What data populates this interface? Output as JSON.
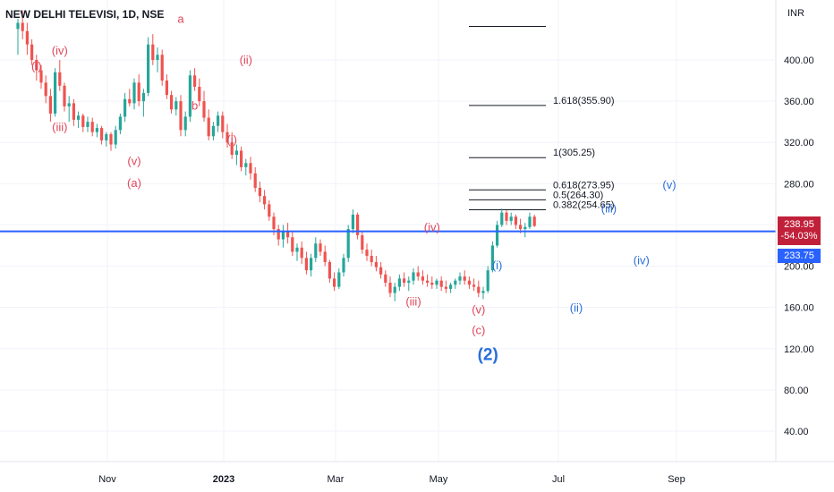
{
  "header": {
    "symbol": "NEW DELHI TELEVISI, 1D, NSE",
    "currency": "INR"
  },
  "price_tags": {
    "last": "238.95",
    "change": "-54.03%",
    "hline": "233.75"
  },
  "chart_data": {
    "type": "candlestick",
    "y_axis_ticks": [
      "400.00",
      "360.00",
      "320.00",
      "280.00",
      "240.00",
      "200.00",
      "160.00",
      "120.00",
      "80.00",
      "40.00"
    ],
    "x_axis_ticks": [
      {
        "label": "Nov",
        "bold": false
      },
      {
        "label": "2023",
        "bold": true
      },
      {
        "label": "Mar",
        "bold": false
      },
      {
        "label": "May",
        "bold": false
      },
      {
        "label": "Jul",
        "bold": false
      },
      {
        "label": "Sep",
        "bold": false
      }
    ],
    "ylim": [
      30,
      435
    ],
    "horizontal_line": 233.75,
    "last_price": 238.95,
    "last_change_pct": -54.03,
    "fib_levels": [
      {
        "label": "1.618(355.90)",
        "value": 355.9
      },
      {
        "label": "1(305.25)",
        "value": 305.25
      },
      {
        "label": "0.618(273.95)",
        "value": 273.95
      },
      {
        "label": "0.5(264.30)",
        "value": 264.3
      },
      {
        "label": "0.382(254.65)",
        "value": 254.65
      },
      {
        "label": "",
        "value": 432.5
      }
    ],
    "wave_labels": [
      {
        "text": "(i)",
        "x": 4,
        "y": 390,
        "color": "red",
        "size": "normal"
      },
      {
        "text": "(iv)",
        "x": 9,
        "y": 405,
        "color": "red",
        "size": "normal"
      },
      {
        "text": "(iii)",
        "x": 9,
        "y": 331,
        "color": "red",
        "size": "normal"
      },
      {
        "text": "(v)",
        "x": 25,
        "y": 298,
        "color": "red",
        "size": "normal"
      },
      {
        "text": "(a)",
        "x": 25,
        "y": 277,
        "color": "red",
        "size": "normal"
      },
      {
        "text": "a",
        "x": 35,
        "y": 436,
        "color": "red",
        "size": "normal"
      },
      {
        "text": "b",
        "x": 38,
        "y": 352,
        "color": "red",
        "size": "normal"
      },
      {
        "text": "(ii)",
        "x": 49,
        "y": 396,
        "color": "red",
        "size": "normal"
      },
      {
        "text": "(i)",
        "x": 46,
        "y": 319,
        "color": "red",
        "size": "normal"
      },
      {
        "text": "(iv)",
        "x": 89,
        "y": 234,
        "color": "red",
        "size": "normal"
      },
      {
        "text": "(iii)",
        "x": 85,
        "y": 162,
        "color": "red",
        "size": "normal"
      },
      {
        "text": "(v)",
        "x": 99,
        "y": 154,
        "color": "red",
        "size": "normal"
      },
      {
        "text": "(c)",
        "x": 99,
        "y": 134,
        "color": "red",
        "size": "normal"
      },
      {
        "text": "(2)",
        "x": 101,
        "y": 109,
        "color": "blue",
        "size": "big"
      },
      {
        "text": "(i)",
        "x": 103,
        "y": 197,
        "color": "blue",
        "size": "normal"
      },
      {
        "text": "(ii)",
        "x": 120,
        "y": 156,
        "color": "blue",
        "size": "normal"
      },
      {
        "text": "(iii)",
        "x": 127,
        "y": 252,
        "color": "blue",
        "size": "normal"
      },
      {
        "text": "(iv)",
        "x": 134,
        "y": 202,
        "color": "blue",
        "size": "normal"
      },
      {
        "text": "(v)",
        "x": 140,
        "y": 275,
        "color": "blue",
        "size": "normal"
      }
    ],
    "candles": [
      [
        0,
        430,
        440,
        405,
        436
      ],
      [
        1,
        436,
        448,
        420,
        428
      ],
      [
        2,
        428,
        436,
        405,
        415
      ],
      [
        3,
        415,
        420,
        395,
        400
      ],
      [
        4,
        400,
        405,
        380,
        390
      ],
      [
        5,
        390,
        395,
        372,
        378
      ],
      [
        6,
        378,
        385,
        358,
        365
      ],
      [
        7,
        365,
        372,
        340,
        348
      ],
      [
        8,
        348,
        392,
        345,
        388
      ],
      [
        9,
        388,
        400,
        370,
        375
      ],
      [
        10,
        375,
        378,
        350,
        355
      ],
      [
        11,
        355,
        365,
        340,
        358
      ],
      [
        12,
        358,
        362,
        336,
        342
      ],
      [
        13,
        342,
        350,
        334,
        346
      ],
      [
        14,
        346,
        348,
        330,
        335
      ],
      [
        15,
        335,
        345,
        330,
        340
      ],
      [
        16,
        340,
        344,
        326,
        330
      ],
      [
        17,
        330,
        338,
        325,
        334
      ],
      [
        18,
        334,
        336,
        318,
        322
      ],
      [
        19,
        322,
        330,
        316,
        328
      ],
      [
        20,
        328,
        330,
        312,
        318
      ],
      [
        21,
        318,
        336,
        314,
        332
      ],
      [
        22,
        332,
        348,
        328,
        345
      ],
      [
        23,
        345,
        368,
        340,
        362
      ],
      [
        24,
        362,
        372,
        355,
        358
      ],
      [
        25,
        358,
        382,
        352,
        378
      ],
      [
        26,
        378,
        386,
        355,
        360
      ],
      [
        27,
        360,
        372,
        345,
        368
      ],
      [
        28,
        368,
        422,
        365,
        415
      ],
      [
        29,
        415,
        425,
        395,
        400
      ],
      [
        30,
        400,
        412,
        388,
        405
      ],
      [
        31,
        405,
        410,
        375,
        380
      ],
      [
        32,
        380,
        386,
        362,
        366
      ],
      [
        33,
        366,
        370,
        348,
        352
      ],
      [
        34,
        352,
        364,
        346,
        360
      ],
      [
        35,
        360,
        366,
        326,
        332
      ],
      [
        36,
        332,
        350,
        326,
        345
      ],
      [
        37,
        345,
        390,
        340,
        385
      ],
      [
        38,
        385,
        392,
        370,
        374
      ],
      [
        39,
        374,
        382,
        355,
        360
      ],
      [
        40,
        360,
        370,
        340,
        344
      ],
      [
        41,
        344,
        352,
        322,
        326
      ],
      [
        42,
        326,
        340,
        322,
        336
      ],
      [
        43,
        336,
        350,
        330,
        346
      ],
      [
        44,
        346,
        350,
        324,
        330
      ],
      [
        45,
        330,
        338,
        315,
        320
      ],
      [
        46,
        320,
        330,
        304,
        308
      ],
      [
        47,
        308,
        318,
        298,
        312
      ],
      [
        48,
        312,
        316,
        292,
        296
      ],
      [
        49,
        296,
        304,
        288,
        300
      ],
      [
        50,
        300,
        306,
        284,
        290
      ],
      [
        51,
        290,
        296,
        272,
        276
      ],
      [
        52,
        276,
        282,
        262,
        268
      ],
      [
        53,
        268,
        274,
        255,
        260
      ],
      [
        54,
        260,
        264,
        244,
        248
      ],
      [
        55,
        248,
        252,
        230,
        236
      ],
      [
        56,
        236,
        240,
        220,
        226
      ],
      [
        57,
        226,
        240,
        218,
        234
      ],
      [
        58,
        234,
        242,
        222,
        228
      ],
      [
        59,
        228,
        234,
        210,
        214
      ],
      [
        60,
        214,
        222,
        205,
        218
      ],
      [
        61,
        218,
        224,
        202,
        208
      ],
      [
        62,
        208,
        214,
        192,
        196
      ],
      [
        63,
        196,
        212,
        190,
        208
      ],
      [
        64,
        208,
        228,
        204,
        222
      ],
      [
        65,
        222,
        226,
        210,
        214
      ],
      [
        66,
        214,
        220,
        200,
        204
      ],
      [
        67,
        204,
        206,
        184,
        188
      ],
      [
        68,
        188,
        194,
        176,
        180
      ],
      [
        69,
        180,
        198,
        178,
        194
      ],
      [
        70,
        194,
        212,
        190,
        208
      ],
      [
        71,
        208,
        240,
        204,
        236
      ],
      [
        72,
        236,
        255,
        232,
        250
      ],
      [
        73,
        250,
        252,
        226,
        230
      ],
      [
        74,
        230,
        234,
        212,
        216
      ],
      [
        75,
        216,
        222,
        205,
        210
      ],
      [
        76,
        210,
        216,
        200,
        204
      ],
      [
        77,
        204,
        210,
        195,
        199
      ],
      [
        78,
        199,
        204,
        188,
        192
      ],
      [
        79,
        192,
        196,
        180,
        184
      ],
      [
        80,
        184,
        190,
        170,
        174
      ],
      [
        81,
        174,
        184,
        166,
        180
      ],
      [
        82,
        180,
        192,
        176,
        188
      ],
      [
        83,
        188,
        194,
        180,
        184
      ],
      [
        84,
        184,
        190,
        176,
        186
      ],
      [
        85,
        186,
        198,
        182,
        194
      ],
      [
        86,
        194,
        200,
        186,
        190
      ],
      [
        87,
        190,
        196,
        182,
        186
      ],
      [
        88,
        186,
        192,
        180,
        184
      ],
      [
        89,
        184,
        190,
        178,
        182
      ],
      [
        90,
        182,
        188,
        178,
        186
      ],
      [
        91,
        186,
        190,
        176,
        180
      ],
      [
        92,
        180,
        186,
        174,
        178
      ],
      [
        93,
        178,
        184,
        174,
        182
      ],
      [
        94,
        182,
        188,
        178,
        186
      ],
      [
        95,
        186,
        194,
        182,
        190
      ],
      [
        96,
        190,
        196,
        182,
        186
      ],
      [
        97,
        186,
        190,
        178,
        182
      ],
      [
        98,
        182,
        188,
        176,
        180
      ],
      [
        99,
        180,
        186,
        170,
        174
      ],
      [
        100,
        174,
        180,
        168,
        176
      ],
      [
        101,
        176,
        200,
        174,
        196
      ],
      [
        102,
        196,
        224,
        194,
        220
      ],
      [
        103,
        220,
        244,
        218,
        240
      ],
      [
        104,
        240,
        256,
        238,
        252
      ],
      [
        105,
        252,
        254,
        240,
        244
      ],
      [
        106,
        244,
        252,
        240,
        248
      ],
      [
        107,
        248,
        250,
        236,
        240
      ],
      [
        108,
        240,
        246,
        232,
        236
      ],
      [
        109,
        236,
        242,
        228,
        238
      ],
      [
        110,
        238,
        252,
        236,
        248
      ],
      [
        111,
        248,
        250,
        238,
        239
      ]
    ]
  }
}
